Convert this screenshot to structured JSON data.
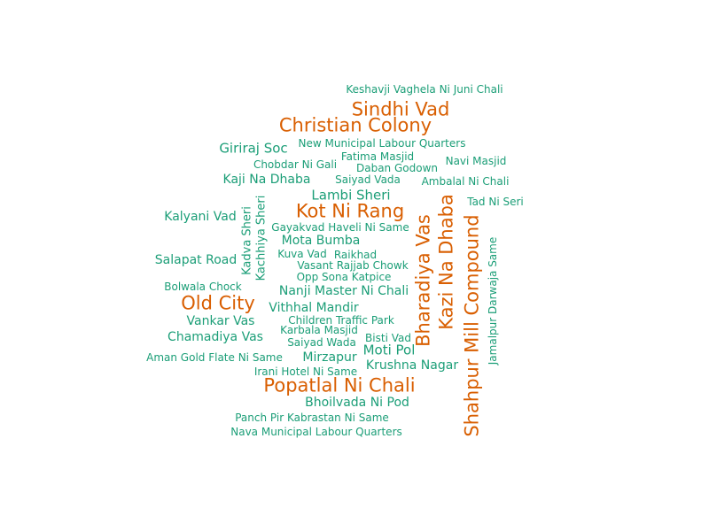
{
  "colors": {
    "large": "#d95f02",
    "small": "#1b9e77",
    "background": "#ffffff"
  },
  "words": [
    {
      "text": "Keshavji Vaghela Ni Juni Chali"
    },
    {
      "text": "Sindhi Vad"
    },
    {
      "text": "Christian Colony"
    },
    {
      "text": "Giriraj Soc"
    },
    {
      "text": "New Municipal Labour Quarters"
    },
    {
      "text": "Fatima Masjid"
    },
    {
      "text": "Chobdar Ni Gali"
    },
    {
      "text": "Daban Godown"
    },
    {
      "text": "Navi Masjid"
    },
    {
      "text": "Kaji Na Dhaba"
    },
    {
      "text": "Saiyad Vada"
    },
    {
      "text": "Ambalal Ni Chali"
    },
    {
      "text": "Lambi Sheri"
    },
    {
      "text": "Tad Ni Seri"
    },
    {
      "text": "Kot Ni Rang"
    },
    {
      "text": "Kalyani Vad"
    },
    {
      "text": "Gayakvad Haveli Ni Same"
    },
    {
      "text": "Mota Bumba"
    },
    {
      "text": "Kadva Sheri"
    },
    {
      "text": "Kachhiya Sheri"
    },
    {
      "text": "Kuva Vad"
    },
    {
      "text": "Raikhad"
    },
    {
      "text": "Salapat Road"
    },
    {
      "text": "Vasant Rajjab Chowk"
    },
    {
      "text": "Opp Sona Katpice"
    },
    {
      "text": "Bolwala Chock"
    },
    {
      "text": "Nanji Master Ni Chali"
    },
    {
      "text": "Bharadiya Vas"
    },
    {
      "text": "Kazi Na Dhaba"
    },
    {
      "text": "Shahpur Mill Compound"
    },
    {
      "text": "Jamalpur Darwaja Same"
    },
    {
      "text": "Old City"
    },
    {
      "text": "Vithhal Mandir"
    },
    {
      "text": "Children Traffic Park"
    },
    {
      "text": "Vankar Vas"
    },
    {
      "text": "Karbala Masjid"
    },
    {
      "text": "Chamadiya Vas"
    },
    {
      "text": "Saiyad Wada"
    },
    {
      "text": "Bisti Vad"
    },
    {
      "text": "Moti Pol"
    },
    {
      "text": "Aman Gold Flate Ni Same"
    },
    {
      "text": "Mirzapur"
    },
    {
      "text": "Krushna Nagar"
    },
    {
      "text": "Irani Hotel Ni Same"
    },
    {
      "text": "Popatlal Ni Chali"
    },
    {
      "text": "Bhoilvada Ni Pod"
    },
    {
      "text": "Panch Pir Kabrastan Ni Same"
    },
    {
      "text": "Nava Municipal Labour Quarters"
    }
  ]
}
